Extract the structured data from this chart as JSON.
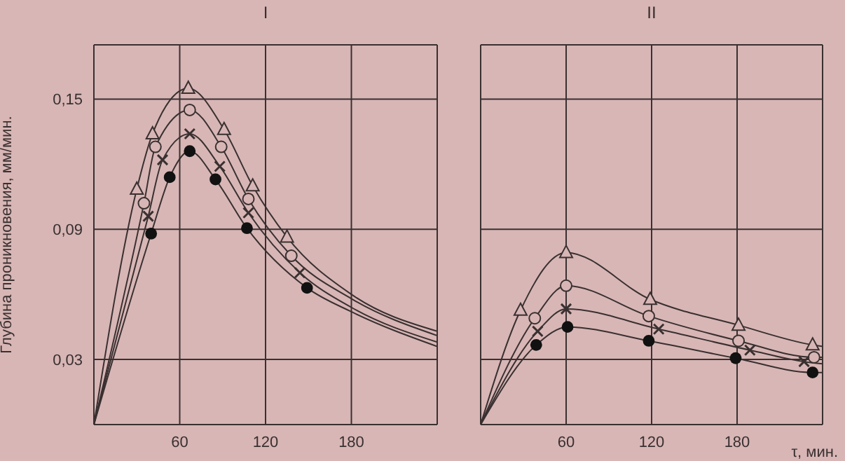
{
  "chart_data": [
    {
      "type": "scatter",
      "title": "I",
      "ylabel": "Глубина проникновения, мм/мин.",
      "xlim": [
        0,
        240
      ],
      "xticks": [
        60,
        120,
        180
      ],
      "ylim": [
        0,
        0.175
      ],
      "yticks": [
        {
          "value": 0.03,
          "label": "0,03"
        },
        {
          "value": 0.09,
          "label": "0,09"
        },
        {
          "value": 0.15,
          "label": "0,15"
        }
      ],
      "grid": true,
      "series": [
        {
          "type": "line",
          "color": "#3a3030",
          "marker": "none",
          "x": [
            0,
            30,
            41,
            66,
            91,
            111,
            135,
            180,
            240
          ],
          "values": [
            0,
            0.1085,
            0.134,
            0.155,
            0.136,
            0.11,
            0.0864,
            0.06,
            0.043
          ]
        },
        {
          "type": "line",
          "color": "#3a3030",
          "marker": "none",
          "x": [
            0,
            35,
            43,
            67,
            89,
            108,
            138,
            180,
            240
          ],
          "values": [
            0,
            0.102,
            0.128,
            0.145,
            0.128,
            0.104,
            0.0778,
            0.058,
            0.041
          ]
        },
        {
          "type": "line",
          "color": "#3a3030",
          "marker": "none",
          "x": [
            0,
            38,
            48,
            67,
            88,
            108,
            144,
            180,
            240
          ],
          "values": [
            0,
            0.096,
            0.122,
            0.134,
            0.119,
            0.0976,
            0.07,
            0.054,
            0.038
          ]
        },
        {
          "type": "line",
          "color": "#3a3030",
          "marker": "none",
          "x": [
            0,
            40,
            53,
            67,
            85,
            107,
            149,
            180,
            240
          ],
          "values": [
            0,
            0.088,
            0.114,
            0.126,
            0.113,
            0.0905,
            0.063,
            0.052,
            0.036
          ]
        },
        {
          "color": "#3a3030",
          "marker": "triangle-open",
          "x": [
            30,
            41,
            66,
            91,
            111,
            135
          ],
          "values": [
            0.1085,
            0.134,
            0.155,
            0.136,
            0.11,
            0.0864
          ]
        },
        {
          "color": "#3a3030",
          "marker": "circle-open",
          "x": [
            35,
            43,
            67,
            89,
            108,
            138
          ],
          "values": [
            0.102,
            0.128,
            0.145,
            0.128,
            0.104,
            0.0778
          ]
        },
        {
          "color": "#3a3030",
          "marker": "cross",
          "x": [
            38,
            48,
            67,
            88,
            108,
            144
          ],
          "values": [
            0.096,
            0.122,
            0.134,
            0.119,
            0.0976,
            0.07
          ]
        },
        {
          "color": "#111111",
          "marker": "circle",
          "x": [
            40,
            53,
            67,
            85,
            107,
            149
          ],
          "values": [
            0.088,
            0.114,
            0.126,
            0.113,
            0.0905,
            0.063
          ]
        }
      ]
    },
    {
      "type": "scatter",
      "title": "II",
      "xlabel": "τ, мин.",
      "xlim": [
        0,
        240
      ],
      "xticks": [
        60,
        120,
        180
      ],
      "ylim": [
        0,
        0.175
      ],
      "yticks": [
        {
          "value": 0.03,
          "label": null
        },
        {
          "value": 0.09,
          "label": null
        },
        {
          "value": 0.15,
          "label": null
        }
      ],
      "tick_labels": "x",
      "grid": true,
      "series": [
        {
          "type": "line",
          "color": "#3a3030",
          "marker": "none",
          "x": [
            0,
            28,
            60,
            119,
            181,
            233,
            240
          ],
          "values": [
            0,
            0.0527,
            0.0793,
            0.0577,
            0.0458,
            0.0367,
            0.036
          ]
        },
        {
          "type": "line",
          "color": "#3a3030",
          "marker": "none",
          "x": [
            0,
            38,
            60,
            118,
            181,
            234,
            240
          ],
          "values": [
            0,
            0.049,
            0.064,
            0.05,
            0.0386,
            0.031,
            0.031
          ]
        },
        {
          "type": "line",
          "color": "#3a3030",
          "marker": "none",
          "x": [
            0,
            40,
            60,
            125,
            189,
            227,
            240
          ],
          "values": [
            0,
            0.043,
            0.0533,
            0.044,
            0.0343,
            0.029,
            0.028
          ]
        },
        {
          "type": "line",
          "color": "#3a3030",
          "marker": "none",
          "x": [
            0,
            39,
            61,
            118,
            179,
            233,
            240
          ],
          "values": [
            0,
            0.0367,
            0.045,
            0.0386,
            0.0306,
            0.024,
            0.024
          ]
        },
        {
          "color": "#3a3030",
          "marker": "triangle-open",
          "x": [
            28,
            60,
            119,
            181,
            233
          ],
          "values": [
            0.0527,
            0.0793,
            0.0577,
            0.0458,
            0.0367
          ]
        },
        {
          "color": "#3a3030",
          "marker": "circle-open",
          "x": [
            38,
            60,
            118,
            181,
            234
          ],
          "values": [
            0.049,
            0.064,
            0.05,
            0.0386,
            0.031
          ]
        },
        {
          "color": "#3a3030",
          "marker": "cross",
          "x": [
            40,
            60,
            125,
            189,
            227
          ],
          "values": [
            0.043,
            0.0533,
            0.044,
            0.0343,
            0.029
          ]
        },
        {
          "color": "#111111",
          "marker": "circle",
          "x": [
            39,
            61,
            118,
            179,
            233
          ],
          "values": [
            0.0367,
            0.045,
            0.0386,
            0.0306,
            0.024
          ]
        }
      ]
    }
  ]
}
